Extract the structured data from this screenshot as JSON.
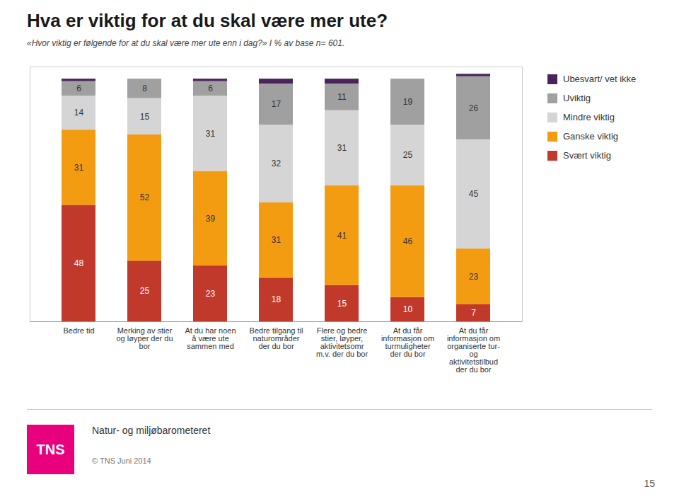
{
  "chart_data": {
    "type": "bar",
    "stacked": true,
    "title": "Hva er viktig for at du skal være mer ute?",
    "subtitle": "«Hvor viktig er følgende for at du skal være mer ute enn i dag?» I % av base n= 601.",
    "categories": [
      "Bedre tid",
      "Merking av stier\nog løyper der du\nbor",
      "At du har noen\nå være ute\nsammen med",
      "Bedre tilgang til\nnaturområder\nder du bor",
      "Flere og bedre\nstier, løyper,\naktivitetsomr\nm.v. der du bor",
      "At du får\ninformasjon om\nturmuligheter\nder du bor",
      "At du får\ninformasjon om\norganiserte tur-\nog\naktivitetstilbud\nder du bor"
    ],
    "series": [
      {
        "name": "Svært viktig",
        "color": "#c0392b",
        "values": [
          48,
          25,
          23,
          18,
          15,
          10,
          7
        ]
      },
      {
        "name": "Ganske viktig",
        "color": "#f39c12",
        "values": [
          31,
          52,
          39,
          31,
          41,
          46,
          23
        ]
      },
      {
        "name": "Mindre viktig",
        "color": "#d5d5d5",
        "values": [
          14,
          15,
          31,
          32,
          31,
          25,
          45
        ]
      },
      {
        "name": "Uviktig",
        "color": "#a0a0a0",
        "values": [
          6,
          8,
          6,
          17,
          11,
          19,
          26
        ]
      },
      {
        "name": "Ubesvart/ vet ikke",
        "color": "#4a235a",
        "values": [
          1,
          0,
          1,
          2,
          2,
          0,
          1
        ],
        "value_labels": [
          null,
          null,
          null,
          null,
          null,
          null,
          null
        ]
      }
    ],
    "ylim": [
      0,
      105
    ],
    "tick_labels": "x",
    "grid": false,
    "legend": "right",
    "data_labels": true,
    "annotations": [
      {
        "text": "TNS",
        "color": "#e8007d"
      },
      {
        "text": "Natur- og miljøbarometeret"
      },
      {
        "text": "© TNS Juni 2014"
      },
      {
        "text": "15"
      }
    ]
  }
}
